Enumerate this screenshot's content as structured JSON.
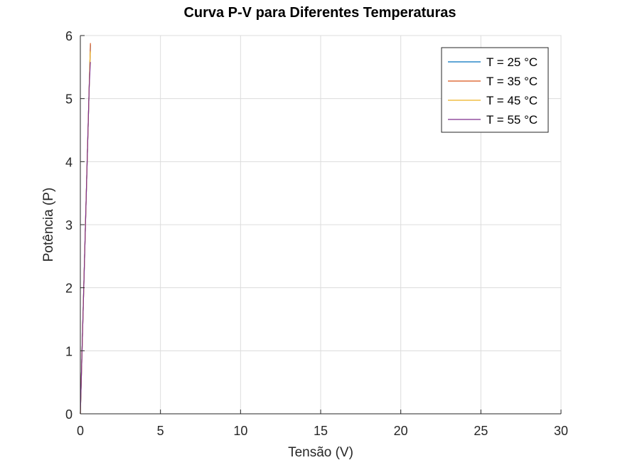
{
  "chart_data": {
    "type": "line",
    "title": "Curva P-V para Diferentes Temperaturas",
    "xlabel": "Tensão (V)",
    "ylabel": "Potência (P)",
    "xlim": [
      0,
      30
    ],
    "ylim": [
      0,
      6
    ],
    "xticks": [
      "0",
      "5",
      "10",
      "15",
      "20",
      "25",
      "30"
    ],
    "yticks": [
      "0",
      "1",
      "2",
      "3",
      "4",
      "5",
      "6"
    ],
    "grid": true,
    "legend_position": "top-right",
    "series": [
      {
        "name": "T = 25 °C",
        "color": "#0072BD",
        "x": [
          0,
          0.05,
          0.1,
          0.15,
          0.2,
          0.25,
          0.3,
          0.35,
          0.4,
          0.45,
          0.5,
          0.55,
          0.6,
          0.62,
          0.63
        ],
        "y": [
          0,
          0.47,
          0.94,
          1.41,
          1.88,
          2.35,
          2.82,
          3.29,
          3.76,
          4.23,
          4.69,
          5.16,
          5.6,
          5.75,
          5.85
        ]
      },
      {
        "name": "T = 35 °C",
        "color": "#D95319",
        "x": [
          0,
          0.05,
          0.1,
          0.15,
          0.2,
          0.25,
          0.3,
          0.35,
          0.4,
          0.45,
          0.5,
          0.55,
          0.6,
          0.62,
          0.63
        ],
        "y": [
          0,
          0.47,
          0.94,
          1.41,
          1.88,
          2.35,
          2.82,
          3.29,
          3.76,
          4.23,
          4.69,
          5.16,
          5.6,
          5.78,
          5.88
        ]
      },
      {
        "name": "T = 45 °C",
        "color": "#EDB120",
        "x": [
          0,
          0.05,
          0.1,
          0.15,
          0.2,
          0.25,
          0.3,
          0.35,
          0.4,
          0.45,
          0.5,
          0.55,
          0.6,
          0.62,
          0.63
        ],
        "y": [
          0,
          0.47,
          0.94,
          1.41,
          1.88,
          2.35,
          2.82,
          3.29,
          3.76,
          4.23,
          4.69,
          5.16,
          5.6,
          5.72,
          5.75
        ]
      },
      {
        "name": "T = 55 °C",
        "color": "#7E2F8E",
        "x": [
          0,
          0.05,
          0.1,
          0.15,
          0.2,
          0.25,
          0.3,
          0.35,
          0.4,
          0.45,
          0.5,
          0.55,
          0.6,
          0.62,
          0.63
        ],
        "y": [
          0,
          0.47,
          0.94,
          1.41,
          1.88,
          2.35,
          2.82,
          3.29,
          3.76,
          4.23,
          4.69,
          5.16,
          5.45,
          5.55,
          5.58
        ]
      }
    ]
  }
}
